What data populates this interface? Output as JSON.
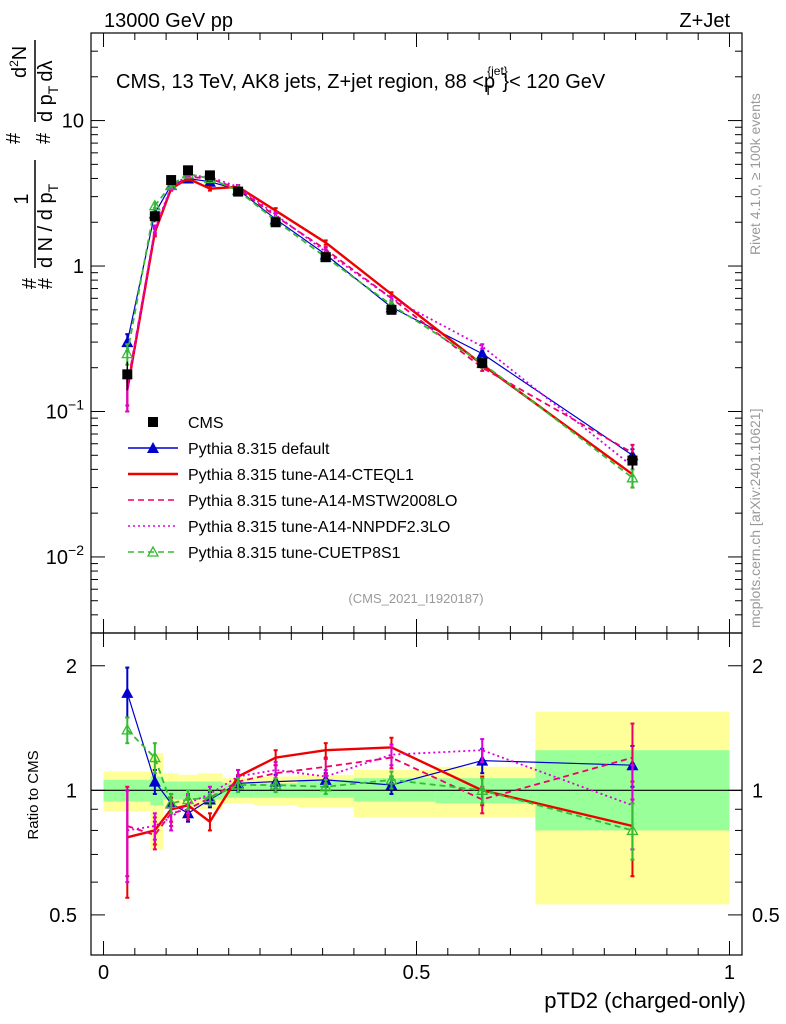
{
  "header": {
    "left": "13000 GeV pp",
    "right": "Z+Jet"
  },
  "side_labels": {
    "rivet": "Rivet 4.1.0, ≥ 100k events",
    "mcplots": "mcplots.cern.ch [arXiv:2401.10621]"
  },
  "analysis_id": "(CMS_2021_I1920187)",
  "colors": {
    "data": "#000000",
    "default": "#0000cc",
    "cteql1": "#ee0000",
    "mstw": "#ee0066",
    "nnpdf": "#dd00dd",
    "cuetp8s1": "#33bb33",
    "band_outer": "#ffff99",
    "band_inner": "#99ff99"
  },
  "chart_data": [
    {
      "panel": "main",
      "type": "line",
      "title": "CMS, 13 TeV, AK8 jets, Z+jet region, 88 <p_T^{jet}< 120 GeV",
      "title_parts": [
        "CMS, 13 TeV, AK8 jets, Z+jet region, 88 <p",
        "{jet}",
        "T",
        "}< 120 GeV"
      ],
      "ylabel_parts": [
        "1",
        "d N / d p",
        "T",
        "#",
        "d",
        "2",
        "N",
        "d p",
        "T",
        "dλ",
        "#",
        "#",
        "#"
      ],
      "yscale": "log",
      "ylim": [
        0.003,
        40
      ],
      "xlim": [
        -0.02,
        1.02
      ],
      "y_ticks": [
        {
          "value": 0.01,
          "base": "10",
          "exp": "−2"
        },
        {
          "value": 0.1,
          "base": "10",
          "exp": "−1"
        },
        {
          "value": 1,
          "base": "1",
          "exp": ""
        },
        {
          "value": 10,
          "base": "10",
          "exp": ""
        }
      ],
      "x": [
        0.038,
        0.082,
        0.108,
        0.135,
        0.17,
        0.215,
        0.275,
        0.355,
        0.46,
        0.605,
        0.845
      ],
      "series": [
        {
          "name": "CMS",
          "key": "data",
          "style": "data",
          "values": [
            0.18,
            2.2,
            3.9,
            4.55,
            4.2,
            3.25,
            2.0,
            1.15,
            0.5,
            0.215,
            0.046
          ],
          "err_lo": [
            0.14,
            2.0,
            3.7,
            4.3,
            4.0,
            3.1,
            1.9,
            1.08,
            0.47,
            0.2,
            0.04
          ],
          "err_hi": [
            0.22,
            2.4,
            4.1,
            4.8,
            4.4,
            3.4,
            2.1,
            1.22,
            0.53,
            0.23,
            0.052
          ]
        },
        {
          "name": "Pythia 8.315 default",
          "key": "default",
          "style": "solid-marker",
          "values": [
            0.3,
            2.3,
            3.6,
            4.0,
            3.8,
            3.35,
            2.1,
            1.2,
            0.52,
            0.25,
            0.05
          ],
          "err_lo": [
            0.26,
            2.2,
            3.5,
            3.9,
            3.7,
            3.25,
            2.05,
            1.17,
            0.5,
            0.24,
            0.045
          ],
          "err_hi": [
            0.34,
            2.4,
            3.7,
            4.1,
            3.9,
            3.45,
            2.15,
            1.23,
            0.54,
            0.26,
            0.055
          ]
        },
        {
          "name": "Pythia 8.315 tune-A14-CTEQL1",
          "key": "cteql1",
          "style": "solid",
          "values": [
            0.14,
            1.7,
            3.4,
            4.0,
            3.4,
            3.5,
            2.4,
            1.45,
            0.64,
            0.21,
            0.037
          ],
          "err_lo": [
            0.1,
            1.6,
            3.3,
            3.9,
            3.3,
            3.4,
            2.3,
            1.4,
            0.62,
            0.2,
            0.03
          ],
          "err_hi": [
            0.18,
            1.8,
            3.5,
            4.1,
            3.5,
            3.6,
            2.5,
            1.5,
            0.66,
            0.22,
            0.044
          ]
        },
        {
          "name": "Pythia 8.315 tune-A14-MSTW2008LO",
          "key": "mstw",
          "style": "dashed",
          "values": [
            0.15,
            1.75,
            3.4,
            4.1,
            4.0,
            3.4,
            2.2,
            1.3,
            0.6,
            0.2,
            0.052
          ],
          "err_lo": [
            0.11,
            1.65,
            3.3,
            4.0,
            3.9,
            3.3,
            2.1,
            1.25,
            0.58,
            0.19,
            0.045
          ],
          "err_hi": [
            0.19,
            1.85,
            3.5,
            4.2,
            4.1,
            3.5,
            2.3,
            1.35,
            0.62,
            0.21,
            0.059
          ]
        },
        {
          "name": "Pythia 8.315 tune-A14-NNPDF2.3LO",
          "key": "nnpdf",
          "style": "dotted",
          "values": [
            0.14,
            1.8,
            3.5,
            4.2,
            4.1,
            3.5,
            2.25,
            1.25,
            0.6,
            0.28,
            0.042
          ],
          "err_lo": [
            0.1,
            1.7,
            3.4,
            4.1,
            4.0,
            3.4,
            2.15,
            1.2,
            0.58,
            0.27,
            0.036
          ],
          "err_hi": [
            0.18,
            1.9,
            3.6,
            4.3,
            4.2,
            3.6,
            2.35,
            1.3,
            0.62,
            0.29,
            0.048
          ]
        },
        {
          "name": "Pythia 8.315 tune-CUETP8S1",
          "key": "cuetp8s1",
          "style": "dashed-open",
          "values": [
            0.25,
            2.6,
            3.6,
            4.3,
            4.0,
            3.3,
            2.05,
            1.15,
            0.54,
            0.215,
            0.035
          ],
          "err_lo": [
            0.21,
            2.5,
            3.5,
            4.2,
            3.9,
            3.2,
            2.0,
            1.12,
            0.52,
            0.2,
            0.03
          ],
          "err_hi": [
            0.29,
            2.7,
            3.7,
            4.4,
            4.1,
            3.4,
            2.1,
            1.18,
            0.56,
            0.23,
            0.04
          ]
        }
      ]
    },
    {
      "panel": "ratio",
      "type": "line",
      "ylabel": "Ratio to CMS",
      "xlabel": "pTD2 (charged-only)",
      "yscale": "log",
      "ylim": [
        0.4,
        2.4
      ],
      "xlim": [
        -0.02,
        1.02
      ],
      "y_ticks": [
        {
          "value": 0.5,
          "label": "0.5"
        },
        {
          "value": 1,
          "label": "1"
        },
        {
          "value": 2,
          "label": "2"
        }
      ],
      "x_ticks": [
        {
          "value": 0,
          "label": "0"
        },
        {
          "value": 0.5,
          "label": "0.5"
        },
        {
          "value": 1,
          "label": "1"
        }
      ],
      "bins": [
        {
          "x0": 0.0,
          "x1": 0.075,
          "inner": [
            0.94,
            1.06
          ],
          "outer": [
            0.89,
            1.11
          ]
        },
        {
          "x0": 0.075,
          "x1": 0.095,
          "inner": [
            0.92,
            1.08
          ],
          "outer": [
            0.72,
            1.23
          ]
        },
        {
          "x0": 0.095,
          "x1": 0.12,
          "inner": [
            0.95,
            1.05
          ],
          "outer": [
            0.9,
            1.1
          ]
        },
        {
          "x0": 0.12,
          "x1": 0.15,
          "inner": [
            0.95,
            1.05
          ],
          "outer": [
            0.91,
            1.09
          ]
        },
        {
          "x0": 0.15,
          "x1": 0.19,
          "inner": [
            0.95,
            1.05
          ],
          "outer": [
            0.9,
            1.1
          ]
        },
        {
          "x0": 0.19,
          "x1": 0.24,
          "inner": [
            0.96,
            1.04
          ],
          "outer": [
            0.93,
            1.07
          ]
        },
        {
          "x0": 0.24,
          "x1": 0.31,
          "inner": [
            0.96,
            1.04
          ],
          "outer": [
            0.92,
            1.08
          ]
        },
        {
          "x0": 0.31,
          "x1": 0.4,
          "inner": [
            0.96,
            1.06
          ],
          "outer": [
            0.91,
            1.09
          ]
        },
        {
          "x0": 0.4,
          "x1": 0.53,
          "inner": [
            0.94,
            1.07
          ],
          "outer": [
            0.86,
            1.12
          ]
        },
        {
          "x0": 0.53,
          "x1": 0.69,
          "inner": [
            0.93,
            1.07
          ],
          "outer": [
            0.86,
            1.14
          ]
        },
        {
          "x0": 0.69,
          "x1": 1.0,
          "inner": [
            0.8,
            1.25
          ],
          "outer": [
            0.53,
            1.55
          ]
        }
      ],
      "x": [
        0.038,
        0.082,
        0.108,
        0.135,
        0.17,
        0.215,
        0.275,
        0.355,
        0.46,
        0.605,
        0.845
      ],
      "series": [
        {
          "name": "Pythia 8.315 default",
          "key": "default",
          "style": "solid-marker",
          "values": [
            1.72,
            1.05,
            0.93,
            0.88,
            0.95,
            1.04,
            1.05,
            1.06,
            1.03,
            1.18,
            1.15
          ],
          "err_lo": [
            1.5,
            0.98,
            0.88,
            0.84,
            0.91,
            1.0,
            1.01,
            1.02,
            0.98,
            1.1,
            1.02
          ],
          "err_hi": [
            1.98,
            1.12,
            0.98,
            0.92,
            0.99,
            1.08,
            1.09,
            1.1,
            1.08,
            1.26,
            1.28
          ]
        },
        {
          "name": "Pythia 8.315 tune-A14-CTEQL1",
          "key": "cteql1",
          "style": "solid",
          "values": [
            0.77,
            0.8,
            0.9,
            0.92,
            0.84,
            1.08,
            1.2,
            1.25,
            1.27,
            1.0,
            0.82
          ],
          "err_lo": [
            0.55,
            0.74,
            0.84,
            0.87,
            0.8,
            1.04,
            1.15,
            1.2,
            1.2,
            0.92,
            0.62
          ],
          "err_hi": [
            1.0,
            0.86,
            0.96,
            0.97,
            0.88,
            1.12,
            1.25,
            1.3,
            1.34,
            1.08,
            1.05
          ]
        },
        {
          "name": "Pythia 8.315 tune-A14-MSTW2008LO",
          "key": "mstw",
          "style": "dashed",
          "values": [
            0.82,
            0.78,
            0.88,
            0.9,
            0.96,
            1.05,
            1.1,
            1.14,
            1.2,
            0.95,
            1.2
          ],
          "err_lo": [
            0.62,
            0.72,
            0.82,
            0.85,
            0.92,
            1.01,
            1.05,
            1.09,
            1.13,
            0.88,
            0.95
          ],
          "err_hi": [
            1.02,
            0.84,
            0.94,
            0.95,
            1.0,
            1.09,
            1.15,
            1.19,
            1.27,
            1.02,
            1.45
          ]
        },
        {
          "name": "Pythia 8.315 tune-A14-NNPDF2.3LO",
          "key": "nnpdf",
          "style": "dotted",
          "values": [
            0.8,
            0.82,
            0.86,
            0.93,
            0.98,
            1.08,
            1.12,
            1.08,
            1.22,
            1.25,
            0.92
          ],
          "err_lo": [
            0.6,
            0.76,
            0.8,
            0.88,
            0.94,
            1.04,
            1.07,
            1.04,
            1.15,
            1.17,
            0.72
          ],
          "err_hi": [
            1.0,
            0.88,
            0.92,
            0.98,
            1.02,
            1.12,
            1.17,
            1.12,
            1.29,
            1.33,
            1.15
          ]
        },
        {
          "name": "Pythia 8.315 tune-CUETP8S1",
          "key": "cuetp8s1",
          "style": "dashed-open",
          "values": [
            1.4,
            1.2,
            0.93,
            0.95,
            0.96,
            1.03,
            1.03,
            1.02,
            1.06,
            1.0,
            0.8
          ],
          "err_lo": [
            1.3,
            1.1,
            0.88,
            0.9,
            0.92,
            0.99,
            0.99,
            0.98,
            1.01,
            0.93,
            0.68
          ],
          "err_hi": [
            1.5,
            1.3,
            0.98,
            1.0,
            1.0,
            1.07,
            1.07,
            1.06,
            1.11,
            1.07,
            0.93
          ]
        }
      ]
    }
  ]
}
